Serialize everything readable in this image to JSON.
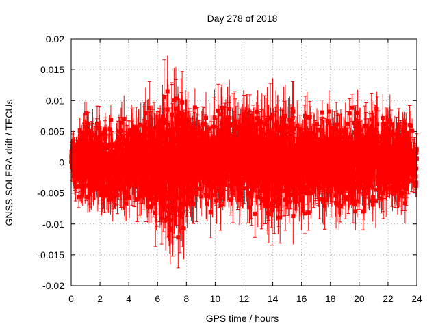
{
  "chart_data": {
    "type": "scatter",
    "title": "Day 278 of 2018",
    "xlabel": "GPS time / hours",
    "ylabel": "GNSS SOLERA-drift / TECUs",
    "xlim": [
      0,
      24
    ],
    "ylim": [
      -0.02,
      0.02
    ],
    "xticks": [
      0,
      2,
      4,
      6,
      8,
      10,
      12,
      14,
      16,
      18,
      20,
      22,
      24
    ],
    "yticks": [
      -0.02,
      -0.015,
      -0.01,
      -0.005,
      0,
      0.005,
      0.01,
      0.015,
      0.02
    ],
    "ytick_labels": [
      "-0.02",
      "-0.015",
      "-0.01",
      "-0.005",
      "0",
      "0.005",
      "0.01",
      "0.015",
      "0.02"
    ],
    "grid": true,
    "series_color": "#ff0000",
    "error_bars": true,
    "envelope": {
      "x": [
        0,
        1,
        2,
        3,
        4,
        5,
        6,
        6.5,
        7,
        7.5,
        8,
        9,
        10,
        11,
        12,
        13,
        14,
        15,
        16,
        17,
        18,
        19,
        20,
        21,
        22,
        23,
        24
      ],
      "y_max": [
        0.0045,
        0.0085,
        0.008,
        0.0075,
        0.0085,
        0.0095,
        0.011,
        0.0125,
        0.0145,
        0.0165,
        0.011,
        0.009,
        0.0095,
        0.011,
        0.0125,
        0.0105,
        0.0115,
        0.0105,
        0.01,
        0.008,
        0.0095,
        0.0095,
        0.0095,
        0.0095,
        0.0095,
        0.009,
        0.005
      ],
      "y_min": [
        -0.004,
        -0.0085,
        -0.0085,
        -0.0085,
        -0.0085,
        -0.0095,
        -0.012,
        -0.0135,
        -0.0145,
        -0.0135,
        -0.0115,
        -0.009,
        -0.0095,
        -0.0095,
        -0.0095,
        -0.0095,
        -0.0125,
        -0.0105,
        -0.0095,
        -0.0085,
        -0.0085,
        -0.0085,
        -0.009,
        -0.0085,
        -0.0085,
        -0.0085,
        -0.005
      ]
    }
  }
}
